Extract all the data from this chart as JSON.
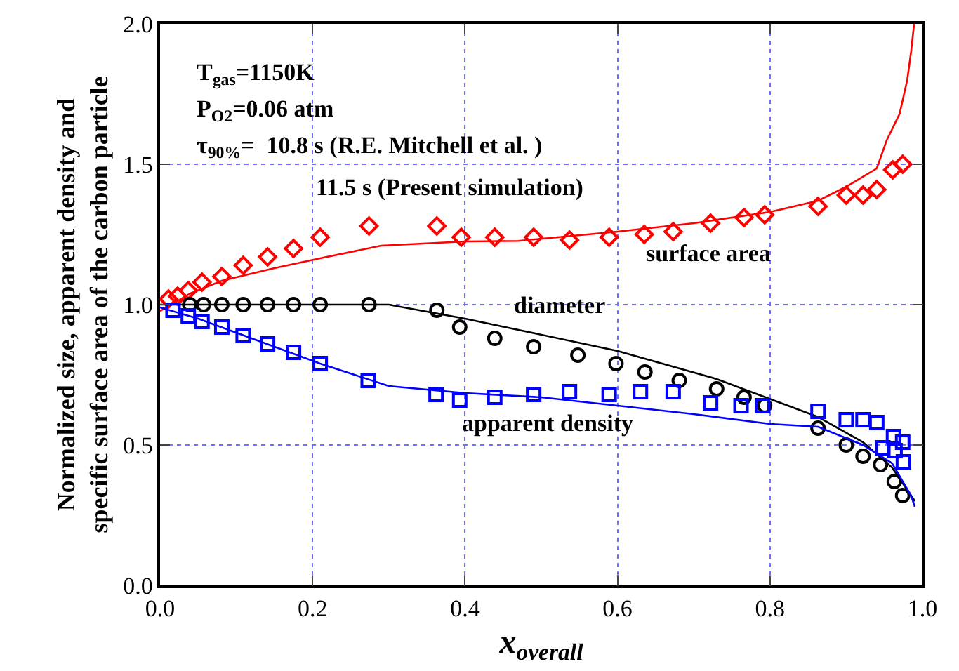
{
  "chart_data": {
    "type": "line",
    "xlabel": "x$_{overall}$",
    "ylabel": "Normalized size, apparent density and\nspecific surface area of the carbon particle",
    "xlim": [
      0,
      1
    ],
    "ylim": [
      0,
      2
    ],
    "xticks": [
      {
        "value": 0,
        "label": "0.0"
      },
      {
        "value": 0.2,
        "label": "0.2"
      },
      {
        "value": 0.4,
        "label": "0.4"
      },
      {
        "value": 0.6,
        "label": "0.6"
      },
      {
        "value": 0.8,
        "label": "0.8"
      },
      {
        "value": 1,
        "label": "1.0"
      }
    ],
    "yticks": [
      {
        "value": 0,
        "label": "0.0"
      },
      {
        "value": 0.5,
        "label": "0.5"
      },
      {
        "value": 1,
        "label": "1.0"
      },
      {
        "value": 1.5,
        "label": "1.5"
      },
      {
        "value": 2,
        "label": "2.0"
      }
    ],
    "grid": true,
    "annotations": [
      "T$_{gas}$=1150K",
      "P$_{O2}$=0.06 atm",
      "τ$_{90%}$=  10.8 s (R.E. Mitchell et al. )",
      "11.5 s (Present simulation)",
      "surface area",
      "diameter",
      "apparent density"
    ],
    "series": [
      {
        "marker": "none",
        "color": "#ff0000",
        "x": [
          0,
          0.04,
          0.081,
          0.15,
          0.21,
          0.29,
          0.4,
          0.47,
          0.6,
          0.7,
          0.8,
          0.863,
          0.9,
          0.94,
          0.953,
          0.97,
          0.98,
          0.985,
          0.989
        ],
        "values": [
          0.977,
          1.04,
          1.085,
          1.13,
          1.165,
          1.21,
          1.225,
          1.227,
          1.26,
          1.29,
          1.33,
          1.37,
          1.42,
          1.485,
          1.585,
          1.68,
          1.8,
          1.9,
          2.0
        ]
      },
      {
        "type": "scatter",
        "marker": "diamond",
        "color": "#ff0000",
        "x": [
          0.011,
          0.023,
          0.037,
          0.055,
          0.081,
          0.109,
          0.141,
          0.175,
          0.21,
          0.274,
          0.363,
          0.395,
          0.439,
          0.49,
          0.537,
          0.589,
          0.635,
          0.673,
          0.722,
          0.766,
          0.793,
          0.863,
          0.9,
          0.922,
          0.94,
          0.961,
          0.974
        ],
        "values": [
          1.02,
          1.03,
          1.05,
          1.08,
          1.1,
          1.14,
          1.17,
          1.2,
          1.24,
          1.28,
          1.28,
          1.24,
          1.24,
          1.24,
          1.23,
          1.24,
          1.25,
          1.26,
          1.29,
          1.31,
          1.32,
          1.35,
          1.39,
          1.39,
          1.41,
          1.48,
          1.5
        ]
      },
      {
        "marker": "none",
        "color": "#000000",
        "x": [
          0,
          0.1,
          0.2,
          0.3,
          0.4,
          0.47,
          0.6,
          0.73,
          0.863,
          0.922,
          0.96,
          0.985,
          0.99
        ],
        "values": [
          1.0,
          1.0,
          1.0,
          1.0,
          0.95,
          0.91,
          0.835,
          0.735,
          0.6,
          0.51,
          0.42,
          0.32,
          0.3
        ]
      },
      {
        "type": "scatter",
        "marker": "circle",
        "color": "#000000",
        "x": [
          0.039,
          0.057,
          0.081,
          0.109,
          0.141,
          0.175,
          0.21,
          0.274,
          0.363,
          0.393,
          0.439,
          0.49,
          0.548,
          0.598,
          0.636,
          0.681,
          0.73,
          0.766,
          0.793,
          0.863,
          0.9,
          0.922,
          0.945,
          0.963,
          0.974
        ],
        "values": [
          1.0,
          1.0,
          1.0,
          1.0,
          1.0,
          1.0,
          1.0,
          1.0,
          0.98,
          0.92,
          0.88,
          0.85,
          0.82,
          0.79,
          0.76,
          0.73,
          0.7,
          0.67,
          0.64,
          0.56,
          0.5,
          0.46,
          0.43,
          0.37,
          0.32
        ]
      },
      {
        "marker": "none",
        "color": "#0000ff",
        "x": [
          0,
          0.05,
          0.1,
          0.21,
          0.3,
          0.4,
          0.5,
          0.6,
          0.7,
          0.8,
          0.863,
          0.922,
          0.96,
          0.985,
          0.99
        ],
        "values": [
          0.99,
          0.95,
          0.9,
          0.79,
          0.71,
          0.685,
          0.67,
          0.64,
          0.61,
          0.575,
          0.565,
          0.5,
          0.435,
          0.32,
          0.28
        ]
      },
      {
        "type": "scatter",
        "marker": "square",
        "color": "#0000ff",
        "x": [
          0.017,
          0.037,
          0.055,
          0.081,
          0.109,
          0.141,
          0.175,
          0.21,
          0.273,
          0.362,
          0.393,
          0.439,
          0.49,
          0.537,
          0.589,
          0.63,
          0.673,
          0.722,
          0.762,
          0.79,
          0.863,
          0.9,
          0.922,
          0.94,
          0.962,
          0.948,
          0.964,
          0.974,
          0.975
        ],
        "values": [
          0.98,
          0.96,
          0.94,
          0.92,
          0.89,
          0.86,
          0.83,
          0.79,
          0.73,
          0.68,
          0.66,
          0.67,
          0.68,
          0.69,
          0.68,
          0.69,
          0.69,
          0.65,
          0.64,
          0.64,
          0.62,
          0.59,
          0.59,
          0.58,
          0.53,
          0.49,
          0.48,
          0.51,
          0.44
        ]
      }
    ]
  }
}
